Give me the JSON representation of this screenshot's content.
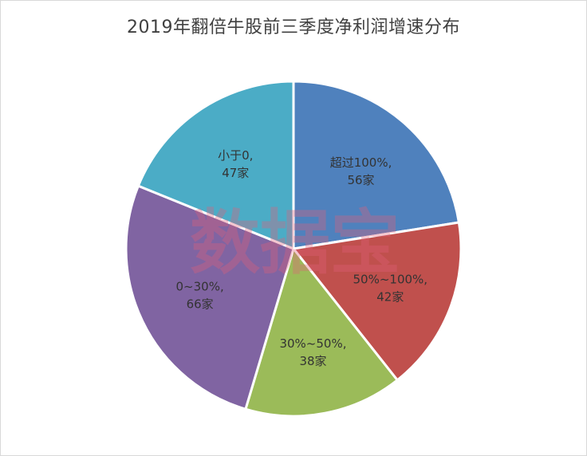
{
  "chart_data": {
    "type": "pie",
    "title": "2019年翻倍牛股前三季度净利润增速分布",
    "slices": [
      {
        "label_line1": "超过100%,",
        "label_line2": "56家",
        "value": 56,
        "color": "#4f81bd"
      },
      {
        "label_line1": "50%~100%,",
        "label_line2": "42家",
        "value": 42,
        "color": "#c0504d"
      },
      {
        "label_line1": "30%~50%,",
        "label_line2": "38家",
        "value": 38,
        "color": "#9bbb59"
      },
      {
        "label_line1": "0~30%,",
        "label_line2": "66家",
        "value": 66,
        "color": "#8064a2"
      },
      {
        "label_line1": "小于0,",
        "label_line2": "47家",
        "value": 47,
        "color": "#4bacc6"
      }
    ],
    "legend": "none"
  },
  "watermark": "数据宝"
}
